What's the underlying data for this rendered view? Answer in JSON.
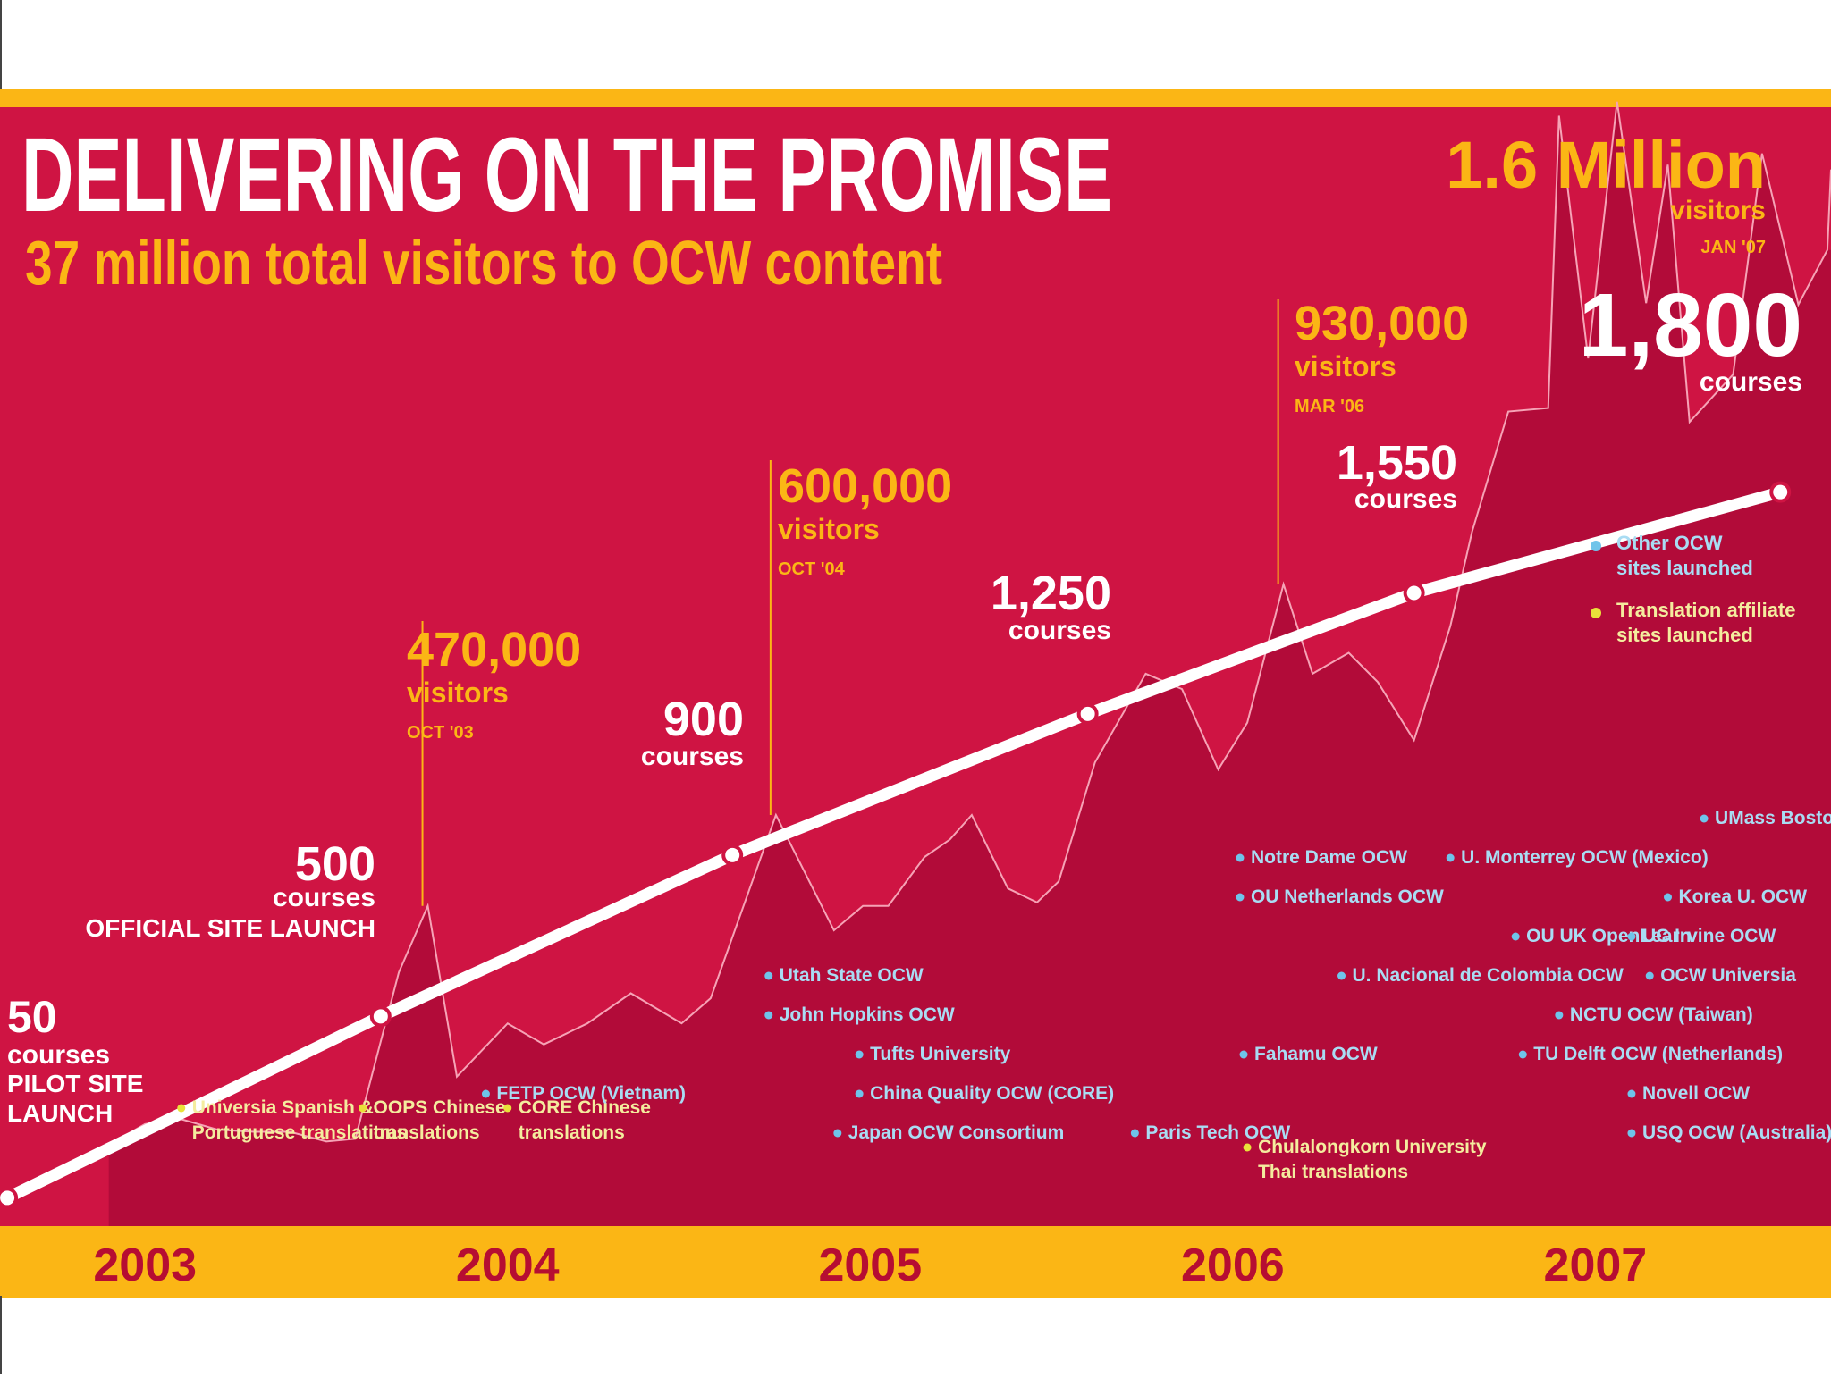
{
  "colors": {
    "background": "#cf1443",
    "area": "#b20b39",
    "stripe": "#fbb615",
    "accent": "#fbb615",
    "text": "#ffffff",
    "dot_blue": "#6fc4ea",
    "dot_yellow": "#e9e23a",
    "year_text": "#b60d32",
    "label_blue": "#a9dcf3",
    "label_yellow": "#f4ec9e"
  },
  "header": {
    "title": "DELIVERING ON THE PROMISE",
    "subtitle": "37 million total visitors to OCW content"
  },
  "chart_data": [
    {
      "type": "area",
      "series": [
        {
          "points": [
            [
              2003.0,
              128000
            ],
            [
              2003.1,
              158000
            ],
            [
              2003.2,
              165000
            ],
            [
              2003.3,
              150000
            ],
            [
              2003.4,
              147000
            ],
            [
              2003.5,
              147000
            ],
            [
              2003.6,
              133000
            ],
            [
              2003.68,
              137000
            ],
            [
              2003.8,
              375000
            ],
            [
              2003.88,
              470000
            ],
            [
              2003.96,
              226000
            ],
            [
              2004.1,
              302000
            ],
            [
              2004.2,
              272000
            ],
            [
              2004.32,
              302000
            ],
            [
              2004.44,
              345000
            ],
            [
              2004.58,
              302000
            ],
            [
              2004.66,
              338000
            ],
            [
              2004.84,
              600000
            ],
            [
              2005.0,
              435000
            ],
            [
              2005.08,
              470000
            ],
            [
              2005.15,
              470000
            ],
            [
              2005.25,
              540000
            ],
            [
              2005.32,
              565000
            ],
            [
              2005.38,
              600000
            ],
            [
              2005.48,
              495000
            ],
            [
              2005.56,
              475000
            ],
            [
              2005.62,
              505000
            ],
            [
              2005.72,
              675000
            ],
            [
              2005.86,
              802000
            ],
            [
              2005.96,
              780000
            ],
            [
              2006.06,
              665000
            ],
            [
              2006.14,
              732000
            ],
            [
              2006.24,
              930000
            ],
            [
              2006.32,
              802000
            ],
            [
              2006.42,
              832000
            ],
            [
              2006.5,
              790000
            ],
            [
              2006.6,
              707000
            ],
            [
              2006.7,
              870000
            ],
            [
              2006.76,
              1005000
            ],
            [
              2006.86,
              1177000
            ],
            [
              2006.97,
              1182000
            ],
            [
              2007.0,
              1600000
            ],
            [
              2007.08,
              1253000
            ],
            [
              2007.16,
              1620000
            ],
            [
              2007.24,
              1332000
            ],
            [
              2007.3,
              1530000
            ],
            [
              2007.36,
              1162000
            ],
            [
              2007.48,
              1230000
            ],
            [
              2007.56,
              1546000
            ],
            [
              2007.66,
              1330000
            ],
            [
              2007.74,
              1408000
            ]
          ]
        }
      ],
      "point_labels": [
        {
          "value": "470,000",
          "unit": "visitors",
          "date": "OCT '03",
          "x": 2003.88,
          "y": 470000
        },
        {
          "value": "600,000",
          "unit": "visitors",
          "date": "OCT '04",
          "x": 2004.84,
          "y": 600000
        },
        {
          "value": "930,000",
          "unit": "visitors",
          "date": "MAR '06",
          "x": 2006.24,
          "y": 930000
        },
        {
          "value": "1.6 Million",
          "unit": "visitors",
          "date": "JAN '07",
          "x": 2007.0,
          "y": 1600000
        }
      ]
    },
    {
      "type": "line",
      "series": [
        {
          "points": [
            [
              2002.72,
              50
            ],
            [
              2003.75,
              500
            ],
            [
              2004.72,
              900
            ],
            [
              2005.7,
              1250
            ],
            [
              2006.6,
              1550
            ],
            [
              2007.61,
              1800
            ]
          ]
        }
      ],
      "point_labels": [
        {
          "value": "50",
          "unit": "courses",
          "note": "PILOT SITE LAUNCH",
          "x": 2002.72,
          "y": 50
        },
        {
          "value": "500",
          "unit": "courses",
          "note": "OFFICIAL SITE LAUNCH",
          "x": 2003.75,
          "y": 500
        },
        {
          "value": "900",
          "unit": "courses",
          "x": 2004.72,
          "y": 900
        },
        {
          "value": "1,250",
          "unit": "courses",
          "x": 2005.7,
          "y": 1250
        },
        {
          "value": "1,550",
          "unit": "courses",
          "x": 2006.6,
          "y": 1550
        },
        {
          "value": "1,800",
          "unit": "courses",
          "x": 2007.61,
          "y": 1800
        }
      ]
    }
  ],
  "x_axis": {
    "ticks": [
      {
        "label": "2003",
        "value": 2003.1
      },
      {
        "label": "2004",
        "value": 2004.1
      },
      {
        "label": "2005",
        "value": 2005.1
      },
      {
        "label": "2006",
        "value": 2006.1
      },
      {
        "label": "2007",
        "value": 2007.1
      }
    ]
  },
  "legend": [
    {
      "color": "#6fc4ea",
      "lines": [
        "Other OCW",
        "sites launched"
      ]
    },
    {
      "color": "#e9e23a",
      "lines": [
        "Translation affiliate",
        "sites launched"
      ]
    }
  ],
  "events": [
    {
      "kind": "translation",
      "x": 2003.2,
      "lines": [
        "Universia Spanish &",
        "Portuguese translations"
      ],
      "row": 1
    },
    {
      "kind": "translation",
      "x": 2003.7,
      "lines": [
        "OOPS Chinese",
        "translations"
      ],
      "row": 1
    },
    {
      "kind": "translation",
      "x": 2004.1,
      "lines": [
        "CORE Chinese",
        "translations"
      ],
      "row": 1
    },
    {
      "kind": "site",
      "x": 2004.04,
      "lines": [
        "FETP OCW (Vietnam)"
      ],
      "row": 2
    },
    {
      "kind": "site",
      "x": 2004.82,
      "lines": [
        "Utah State OCW"
      ],
      "row": 5
    },
    {
      "kind": "site",
      "x": 2004.82,
      "lines": [
        "John Hopkins OCW"
      ],
      "row": 4
    },
    {
      "kind": "site",
      "x": 2005.07,
      "lines": [
        "Tufts University"
      ],
      "row": 3
    },
    {
      "kind": "site",
      "x": 2005.07,
      "lines": [
        "China Quality OCW (CORE)"
      ],
      "row": 2
    },
    {
      "kind": "site",
      "x": 2005.01,
      "lines": [
        "Japan OCW Consortium"
      ],
      "row": 1
    },
    {
      "kind": "site",
      "x": 2006.12,
      "lines": [
        "Notre Dame OCW"
      ],
      "row": 8
    },
    {
      "kind": "site",
      "x": 2006.12,
      "lines": [
        "OU Netherlands OCW"
      ],
      "row": 7
    },
    {
      "kind": "site",
      "x": 2006.4,
      "lines": [
        "U. Nacional de Colombia OCW"
      ],
      "row": 5
    },
    {
      "kind": "site",
      "x": 2006.13,
      "lines": [
        "Fahamu OCW"
      ],
      "row": 3
    },
    {
      "kind": "site",
      "x": 2005.83,
      "lines": [
        "Paris Tech OCW"
      ],
      "row": 1
    },
    {
      "kind": "translation",
      "x": 2006.14,
      "lines": [
        "Chulalongkorn University",
        "Thai translations"
      ],
      "row": 0
    },
    {
      "kind": "site",
      "x": 2006.7,
      "lines": [
        "U. Monterrey OCW (Mexico)"
      ],
      "row": 8
    },
    {
      "kind": "site",
      "x": 2006.88,
      "lines": [
        "OU UK OpenLearn"
      ],
      "row": 6
    },
    {
      "kind": "site",
      "x": 2007.25,
      "lines": [
        "OCW Universia"
      ],
      "row": 5
    },
    {
      "kind": "site",
      "x": 2007.0,
      "lines": [
        "NCTU OCW (Taiwan)"
      ],
      "row": 4
    },
    {
      "kind": "site",
      "x": 2006.9,
      "lines": [
        "TU Delft OCW (Netherlands)"
      ],
      "row": 3
    },
    {
      "kind": "site",
      "x": 2007.2,
      "lines": [
        "Novell OCW"
      ],
      "row": 2
    },
    {
      "kind": "site",
      "x": 2007.2,
      "lines": [
        "USQ OCW (Australia)"
      ],
      "row": 1
    },
    {
      "kind": "site",
      "x": 2007.4,
      "lines": [
        "UMass Boston OCW"
      ],
      "row": 9
    },
    {
      "kind": "site",
      "x": 2007.3,
      "lines": [
        "Korea U. OCW"
      ],
      "row": 7
    },
    {
      "kind": "site",
      "x": 2007.2,
      "lines": [
        "UC Irvine OCW"
      ],
      "row": 6
    }
  ]
}
